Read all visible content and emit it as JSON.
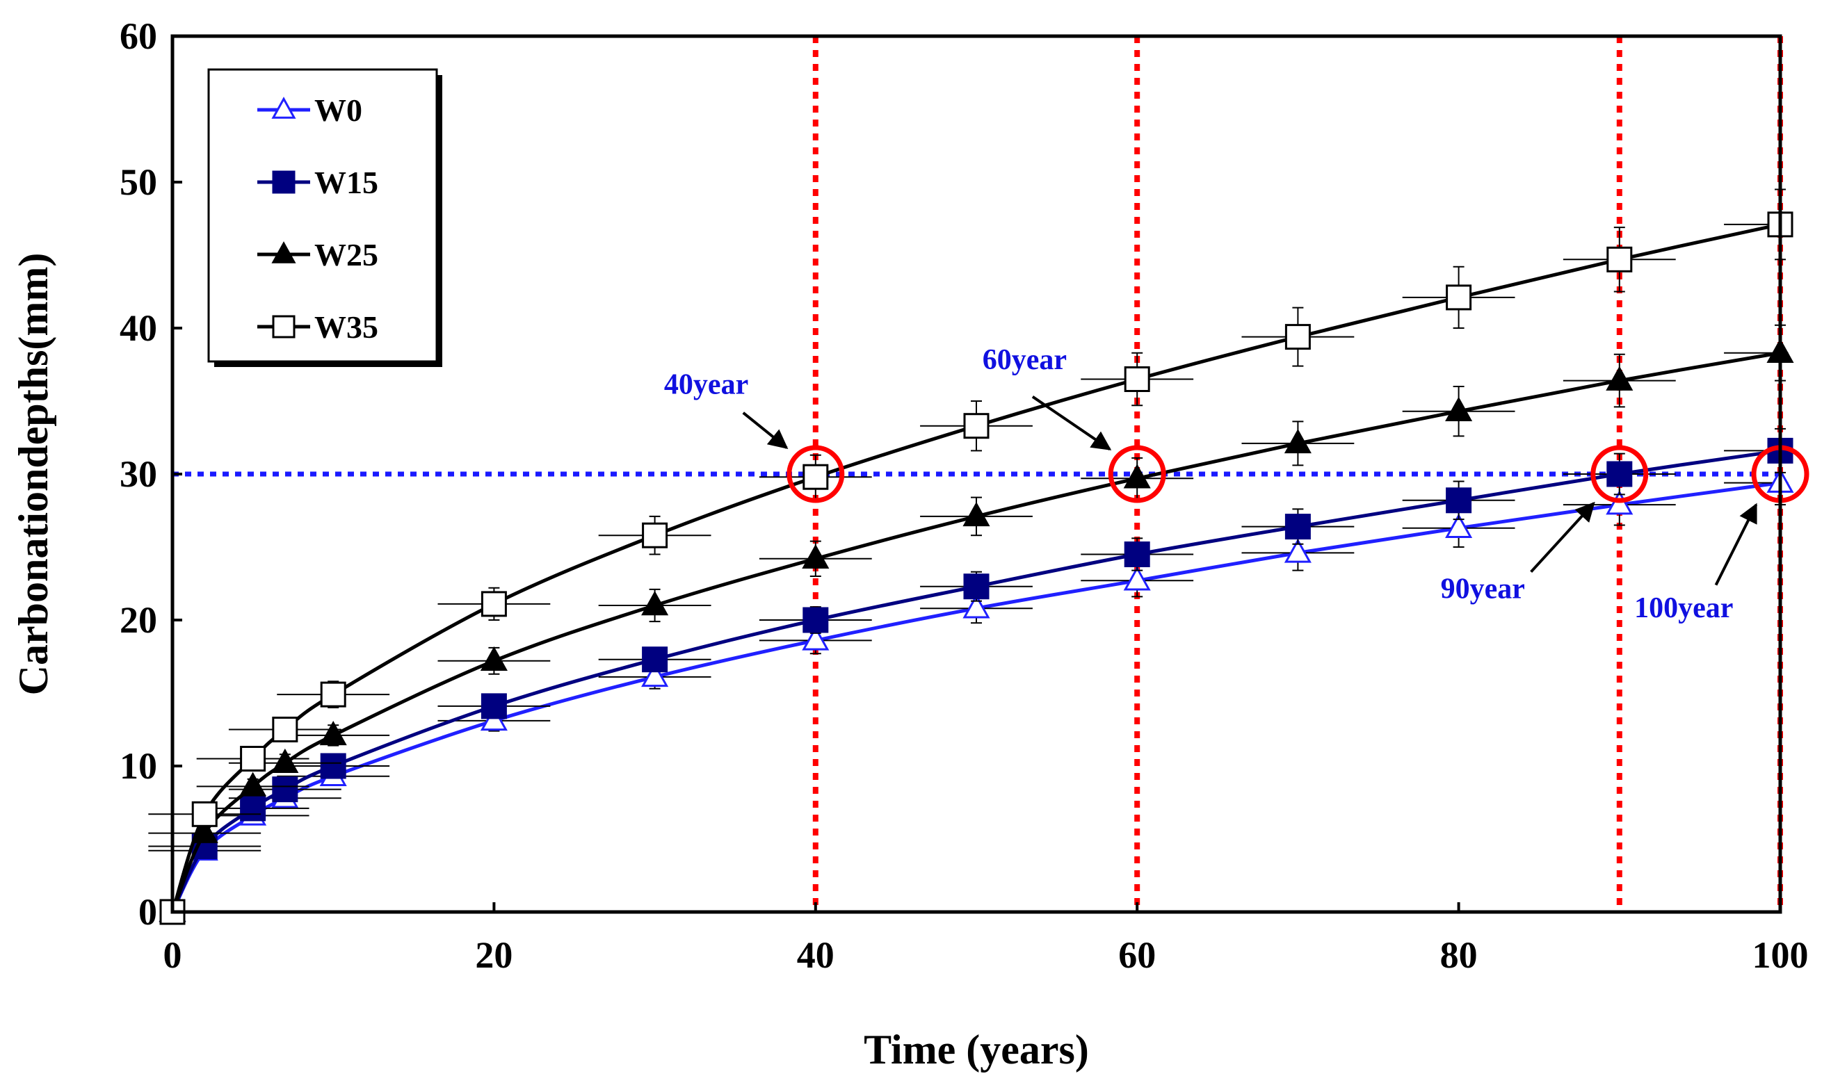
{
  "chart_data": {
    "type": "line",
    "title": "",
    "xlabel": "Time (years)",
    "ylabel": "Carbonationdepths(mm)",
    "xlim": [
      0,
      100
    ],
    "ylim": [
      0,
      60
    ],
    "xticks": [
      0,
      20,
      40,
      60,
      80,
      100
    ],
    "yticks": [
      0,
      10,
      20,
      30,
      40,
      50,
      60
    ],
    "x": [
      0,
      2,
      5,
      7,
      10,
      20,
      30,
      40,
      50,
      60,
      70,
      80,
      90,
      100
    ],
    "series": [
      {
        "name": "W0",
        "marker": "open-triangle",
        "color": "#2020ff",
        "values": [
          0,
          4.2,
          6.6,
          7.8,
          9.3,
          13.1,
          16.1,
          18.6,
          20.8,
          22.7,
          24.6,
          26.3,
          27.9,
          29.4
        ],
        "errors": [
          0,
          0.3,
          0.4,
          0.5,
          0.5,
          0.7,
          0.8,
          0.9,
          1.0,
          1.1,
          1.2,
          1.3,
          1.4,
          1.5
        ]
      },
      {
        "name": "W15",
        "marker": "filled-square",
        "color": "#000080",
        "values": [
          0,
          4.5,
          7.1,
          8.4,
          10.0,
          14.1,
          17.3,
          20.0,
          22.3,
          24.5,
          26.4,
          28.2,
          30.0,
          31.6
        ],
        "errors": [
          0,
          0.3,
          0.4,
          0.5,
          0.5,
          0.7,
          0.8,
          0.9,
          1.0,
          1.1,
          1.2,
          1.3,
          1.4,
          1.5
        ]
      },
      {
        "name": "W25",
        "marker": "filled-triangle",
        "color": "#000000",
        "values": [
          0,
          5.4,
          8.6,
          10.2,
          12.1,
          17.2,
          21.0,
          24.2,
          27.1,
          29.7,
          32.1,
          34.3,
          36.4,
          38.3
        ],
        "errors": [
          0,
          0.4,
          0.5,
          0.6,
          0.7,
          0.9,
          1.1,
          1.2,
          1.3,
          1.4,
          1.5,
          1.7,
          1.8,
          1.9
        ]
      },
      {
        "name": "W35",
        "marker": "open-square",
        "color": "#000000",
        "values": [
          0,
          6.7,
          10.5,
          12.5,
          14.9,
          21.1,
          25.8,
          29.8,
          33.3,
          36.5,
          39.4,
          42.1,
          44.7,
          47.1
        ],
        "errors": [
          0,
          0.5,
          0.7,
          0.8,
          0.9,
          1.1,
          1.3,
          1.5,
          1.7,
          1.8,
          2.0,
          2.1,
          2.2,
          2.4
        ]
      }
    ],
    "xerr_half_width": 3.5,
    "reference_line": {
      "y": 30,
      "color": "#1a1aff",
      "style": "dotted"
    },
    "vertical_lines": [
      {
        "x": 40,
        "color": "#ff0000",
        "style": "dotted"
      },
      {
        "x": 60,
        "color": "#ff0000",
        "style": "dotted"
      },
      {
        "x": 90,
        "color": "#ff0000",
        "style": "dotted"
      },
      {
        "x": 100,
        "color": "#ff0000",
        "style": "dotted"
      }
    ],
    "highlight_circles": [
      {
        "x": 40,
        "y": 30,
        "color": "#ff0000"
      },
      {
        "x": 60,
        "y": 30,
        "color": "#ff0000"
      },
      {
        "x": 90,
        "y": 30,
        "color": "#ff0000"
      },
      {
        "x": 100,
        "y": 30,
        "color": "#ff0000"
      }
    ],
    "annotations": [
      {
        "text": "40year",
        "label_at": [
          33.2,
          35.5
        ],
        "arrow_from": [
          35.5,
          34.2
        ],
        "arrow_to": [
          38.2,
          31.8
        ]
      },
      {
        "text": "60year",
        "label_at": [
          53.0,
          37.2
        ],
        "arrow_from": [
          53.5,
          35.3
        ],
        "arrow_to": [
          58.3,
          31.7
        ]
      },
      {
        "text": "90year",
        "label_at": [
          81.5,
          21.5
        ],
        "arrow_from": [
          84.5,
          23.3
        ],
        "arrow_to": [
          88.4,
          28.0
        ]
      },
      {
        "text": "100year",
        "label_at": [
          94.0,
          20.2
        ],
        "arrow_from": [
          96.0,
          22.4
        ],
        "arrow_to": [
          98.5,
          27.9
        ]
      }
    ],
    "legend": {
      "position": "top-left",
      "entries": [
        "W0",
        "W15",
        "W25",
        "W35"
      ]
    },
    "colors": {
      "annotation_text": "#1010e0",
      "arrow": "#000000",
      "axis": "#000000"
    }
  }
}
